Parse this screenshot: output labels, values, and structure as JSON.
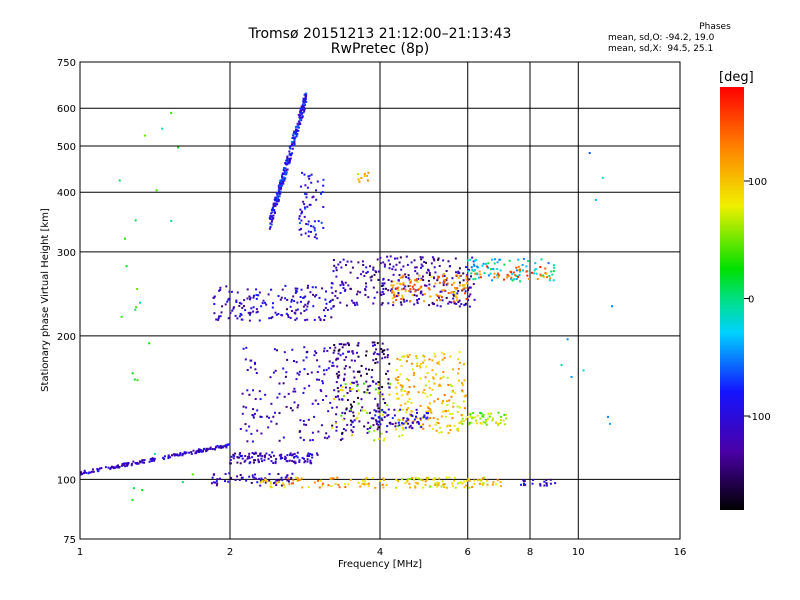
{
  "title": "Tromsø 20151213 21:12:00–21:13:43",
  "subtitle": "RwPretec (8p)",
  "phases": {
    "title": "Phases",
    "line_o": "mean, sd,O: -94.2, 19.0",
    "line_x": "mean, sd,X:  94.5, 25.1"
  },
  "colorbar": {
    "label": "[deg]",
    "ticks": [
      "100",
      "0",
      "-100"
    ],
    "range": [
      -180,
      180
    ]
  },
  "chart_data": {
    "type": "scatter",
    "xlabel": "Frequency [MHz]",
    "ylabel": "Stationary phase Virtual Height [km]",
    "xscale": "log",
    "yscale": "log",
    "xlim": [
      1,
      16
    ],
    "ylim": [
      75,
      750
    ],
    "xticks": [
      "1",
      "2",
      "4",
      "6",
      "8",
      "10",
      "16"
    ],
    "yticks": [
      "75",
      "100",
      "200",
      "300",
      "400",
      "500",
      "600",
      "750"
    ],
    "grid": true,
    "clusters": [
      {
        "f": [
          1.0,
          2.0
        ],
        "h": [
          103,
          118
        ],
        "phase": -110,
        "n": 180,
        "trend": "rising"
      },
      {
        "f": [
          2.0,
          3.0
        ],
        "h": [
          108,
          114
        ],
        "phase": -115,
        "n": 110
      },
      {
        "f": [
          1.8,
          2.7
        ],
        "h": [
          97,
          103
        ],
        "phase": -115,
        "n": 60
      },
      {
        "f": [
          2.3,
          4.2
        ],
        "h": [
          96,
          101
        ],
        "phase": 110,
        "n": 70
      },
      {
        "f": [
          4.3,
          7.0
        ],
        "h": [
          96,
          101
        ],
        "phase": 90,
        "n": 90
      },
      {
        "f": [
          7.6,
          9.0
        ],
        "h": [
          97,
          100
        ],
        "phase": -110,
        "n": 20
      },
      {
        "f": [
          2.1,
          3.6
        ],
        "h": [
          120,
          190
        ],
        "phase": -115,
        "n": 180
      },
      {
        "f": [
          3.2,
          4.2
        ],
        "h": [
          125,
          195
        ],
        "phase": -140,
        "n": 160
      },
      {
        "f": [
          3.2,
          4.5
        ],
        "h": [
          120,
          160
        ],
        "phase": 70,
        "n": 60
      },
      {
        "f": [
          4.3,
          6.0
        ],
        "h": [
          125,
          185
        ],
        "phase": 100,
        "n": 200
      },
      {
        "f": [
          3.8,
          5.0
        ],
        "h": [
          128,
          140
        ],
        "phase": -105,
        "n": 60
      },
      {
        "f": [
          5.8,
          7.2
        ],
        "h": [
          130,
          138
        ],
        "phase": 60,
        "n": 50
      },
      {
        "f": [
          1.85,
          3.2
        ],
        "h": [
          215,
          255
        ],
        "phase": -110,
        "n": 160
      },
      {
        "f": [
          3.2,
          4.0
        ],
        "h": [
          230,
          290
        ],
        "phase": -120,
        "n": 80
      },
      {
        "f": [
          4.0,
          6.2
        ],
        "h": [
          230,
          295
        ],
        "phase": -130,
        "n": 200
      },
      {
        "f": [
          4.2,
          6.0
        ],
        "h": [
          235,
          270
        ],
        "phase": 125,
        "n": 110
      },
      {
        "f": [
          6.0,
          9.0
        ],
        "h": [
          260,
          290
        ],
        "phase": -20,
        "n": 80
      },
      {
        "f": [
          6.2,
          8.8
        ],
        "h": [
          262,
          280
        ],
        "phase": 140,
        "n": 40
      },
      {
        "f": [
          2.4,
          2.85
        ],
        "h": [
          340,
          640
        ],
        "phase": -90,
        "n": 260,
        "trend": "rising"
      },
      {
        "f": [
          2.75,
          3.1
        ],
        "h": [
          320,
          450
        ],
        "phase": -95,
        "n": 60
      },
      {
        "f": [
          3.6,
          3.8
        ],
        "h": [
          420,
          440
        ],
        "phase": 100,
        "n": 10
      },
      {
        "f": [
          1.2,
          1.7
        ],
        "h": [
          85,
          600
        ],
        "phase": 20,
        "n": 25
      },
      {
        "f": [
          9.0,
          13.0
        ],
        "h": [
          110,
          500
        ],
        "phase": -30,
        "n": 10
      }
    ]
  }
}
